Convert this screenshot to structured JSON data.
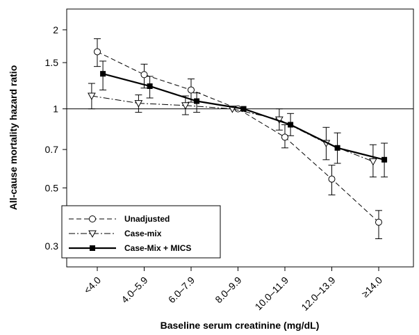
{
  "chart_data": {
    "type": "line",
    "xlabel": "Baseline serum creatinine (mg/dL)",
    "ylabel": "All-cause mortality hazard ratio",
    "y_scale": "log",
    "ylim": [
      0.25,
      2.4
    ],
    "y_ticks": [
      0.3,
      0.5,
      0.7,
      1,
      1.5,
      2
    ],
    "y_tick_labels": [
      "0.3",
      "0.5",
      "0.7",
      "1",
      "1.5",
      "2"
    ],
    "categories": [
      "<4.0",
      "4.0–5.9",
      "6.0–7.9",
      "8.0–9.9",
      "10.0–11.9",
      "12.0–13.9",
      "≥14.0"
    ],
    "reference_line": 1,
    "legend_position": "bottom-left",
    "series": [
      {
        "name": "Unadjusted",
        "line_style": "dashed",
        "marker": "open-circle",
        "offset": 0,
        "values": [
          1.65,
          1.35,
          1.18,
          1.0,
          0.78,
          0.54,
          0.37
        ],
        "ci_low": [
          1.45,
          1.2,
          1.06,
          1.0,
          0.71,
          0.47,
          0.32
        ],
        "ci_high": [
          1.85,
          1.48,
          1.3,
          1.0,
          0.87,
          0.61,
          0.41
        ]
      },
      {
        "name": "Case-mix",
        "line_style": "dash-dot",
        "marker": "open-triangle-down",
        "offset": -0.12,
        "values": [
          1.12,
          1.05,
          1.03,
          1.0,
          0.91,
          0.74,
          0.63
        ],
        "ci_low": [
          1.0,
          0.97,
          0.95,
          1.0,
          0.83,
          0.64,
          0.55
        ],
        "ci_high": [
          1.25,
          1.13,
          1.12,
          1.0,
          1.0,
          0.85,
          0.73
        ]
      },
      {
        "name": "Case-Mix + MICS",
        "line_style": "solid",
        "marker": "filled-square",
        "offset": 0.12,
        "values": [
          1.36,
          1.22,
          1.07,
          1.0,
          0.87,
          0.71,
          0.64
        ],
        "ci_low": [
          1.18,
          1.1,
          0.97,
          1.0,
          0.79,
          0.62,
          0.55
        ],
        "ci_high": [
          1.52,
          1.33,
          1.15,
          1.0,
          0.96,
          0.81,
          0.74
        ]
      }
    ]
  }
}
